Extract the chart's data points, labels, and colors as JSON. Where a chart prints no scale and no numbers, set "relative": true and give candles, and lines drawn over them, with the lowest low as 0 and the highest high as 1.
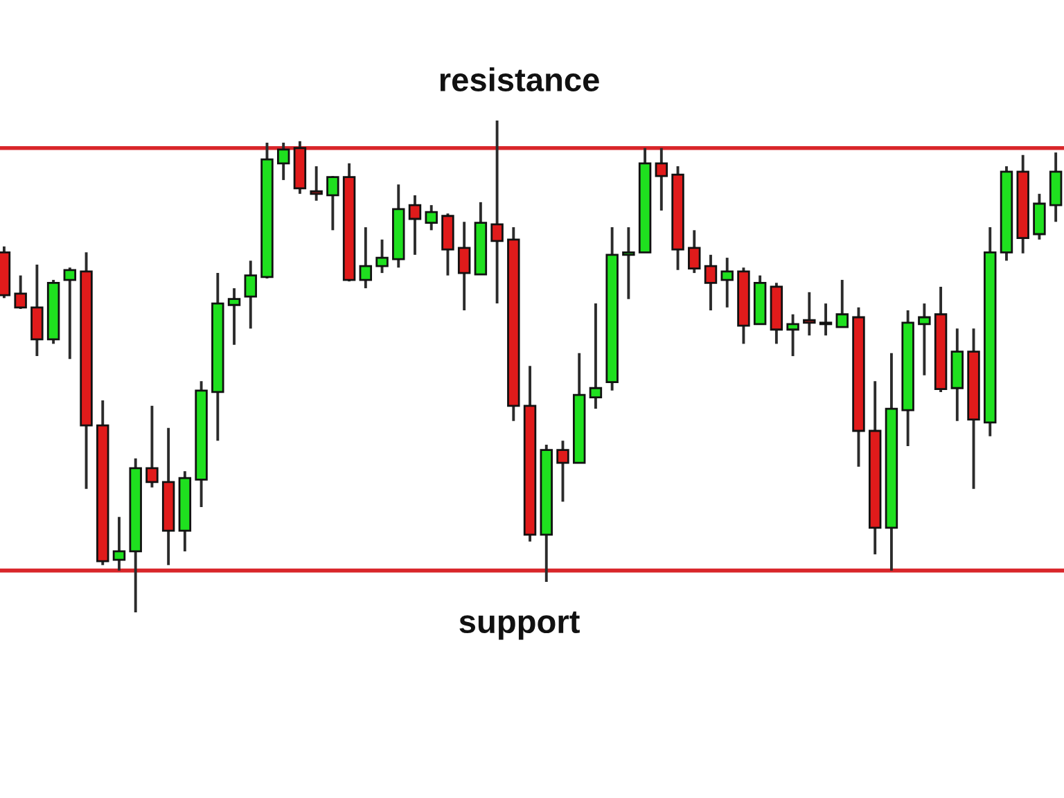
{
  "chart_data": {
    "type": "candlestick",
    "relative": true,
    "categories": [
      null,
      null,
      null,
      null,
      null,
      null,
      null,
      null,
      null,
      null,
      null,
      null,
      null,
      null,
      null,
      null,
      null,
      null,
      null,
      null,
      null,
      null,
      null,
      null,
      null,
      null,
      null,
      null,
      null,
      null,
      null,
      null,
      null,
      null,
      null,
      null,
      null,
      null,
      null,
      null,
      null,
      null,
      null,
      null,
      null,
      null,
      null,
      null,
      null,
      null,
      null,
      null,
      null,
      null,
      null,
      null,
      null,
      null,
      null,
      null,
      null,
      null,
      null,
      null,
      null
    ],
    "ohlc": [
      [
        0.732,
        0.744,
        0.639,
        0.645
      ],
      [
        0.648,
        0.685,
        0.617,
        0.62
      ],
      [
        0.62,
        0.707,
        0.521,
        0.555
      ],
      [
        0.555,
        0.676,
        0.546,
        0.67
      ],
      [
        0.676,
        0.701,
        0.515,
        0.696
      ],
      [
        0.693,
        0.732,
        0.251,
        0.38
      ],
      [
        0.38,
        0.431,
        0.096,
        0.104
      ],
      [
        0.107,
        0.194,
        0.085,
        0.124
      ],
      [
        0.124,
        0.313,
        0,
        0.293
      ],
      [
        0.293,
        0.42,
        0.254,
        0.265
      ],
      [
        0.265,
        0.375,
        0.096,
        0.166
      ],
      [
        0.166,
        0.287,
        0.124,
        0.273
      ],
      [
        0.27,
        0.47,
        0.214,
        0.451
      ],
      [
        0.448,
        0.69,
        0.349,
        0.628
      ],
      [
        0.625,
        0.659,
        0.544,
        0.637
      ],
      [
        0.642,
        0.715,
        0.577,
        0.685
      ],
      [
        0.682,
        0.955,
        0.679,
        0.921
      ],
      [
        0.913,
        0.955,
        0.879,
        0.941
      ],
      [
        0.944,
        0.958,
        0.851,
        0.862
      ],
      [
        0.856,
        0.907,
        0.837,
        0.851
      ],
      [
        0.848,
        0.887,
        0.777,
        0.885
      ],
      [
        0.885,
        0.913,
        0.673,
        0.676
      ],
      [
        0.676,
        0.783,
        0.659,
        0.704
      ],
      [
        0.704,
        0.758,
        0.69,
        0.721
      ],
      [
        0.718,
        0.87,
        0.701,
        0.82
      ],
      [
        0.828,
        0.848,
        0.727,
        0.8
      ],
      [
        0.792,
        0.828,
        0.777,
        0.814
      ],
      [
        0.806,
        0.811,
        0.685,
        0.738
      ],
      [
        0.741,
        0.794,
        0.614,
        0.69
      ],
      [
        0.687,
        0.834,
        0.687,
        0.792
      ],
      [
        0.789,
        1,
        0.628,
        0.755
      ],
      [
        0.758,
        0.783,
        0.389,
        0.42
      ],
      [
        0.42,
        0.501,
        0.144,
        0.158
      ],
      [
        0.158,
        0.341,
        0.062,
        0.33
      ],
      [
        0.33,
        0.349,
        0.225,
        0.304
      ],
      [
        0.304,
        0.527,
        0.304,
        0.442
      ],
      [
        0.437,
        0.628,
        0.414,
        0.456
      ],
      [
        0.468,
        0.783,
        0.451,
        0.727
      ],
      [
        0.727,
        0.783,
        0.637,
        0.732
      ],
      [
        0.732,
        0.944,
        0.732,
        0.913
      ],
      [
        0.913,
        0.944,
        0.817,
        0.887
      ],
      [
        0.89,
        0.907,
        0.696,
        0.738
      ],
      [
        0.741,
        0.777,
        0.69,
        0.699
      ],
      [
        0.704,
        0.727,
        0.614,
        0.67
      ],
      [
        0.676,
        0.721,
        0.62,
        0.693
      ],
      [
        0.693,
        0.701,
        0.546,
        0.583
      ],
      [
        0.586,
        0.685,
        0.586,
        0.67
      ],
      [
        0.662,
        0.67,
        0.546,
        0.575
      ],
      [
        0.575,
        0.606,
        0.521,
        0.586
      ],
      [
        0.594,
        0.651,
        0.563,
        0.589
      ],
      [
        0.589,
        0.628,
        0.563,
        0.586
      ],
      [
        0.58,
        0.676,
        0.58,
        0.606
      ],
      [
        0.6,
        0.62,
        0.296,
        0.369
      ],
      [
        0.369,
        0.47,
        0.118,
        0.172
      ],
      [
        0.172,
        0.527,
        0.085,
        0.414
      ],
      [
        0.411,
        0.614,
        0.338,
        0.589
      ],
      [
        0.586,
        0.628,
        0.482,
        0.6
      ],
      [
        0.606,
        0.662,
        0.448,
        0.454
      ],
      [
        0.456,
        0.577,
        0.389,
        0.53
      ],
      [
        0.53,
        0.577,
        0.251,
        0.392
      ],
      [
        0.386,
        0.783,
        0.358,
        0.732
      ],
      [
        0.732,
        0.907,
        0.715,
        0.896
      ],
      [
        0.896,
        0.93,
        0.73,
        0.761
      ],
      [
        0.769,
        0.851,
        0.758,
        0.831
      ],
      [
        0.828,
        0.935,
        0.794,
        0.896
      ]
    ],
    "colors": [
      "#e01b1b",
      "#e01b1b",
      "#e01b1b",
      "#1fe01f",
      "#1fe01f",
      "#e01b1b",
      "#e01b1b",
      "#1fe01f",
      "#1fe01f",
      "#e01b1b",
      "#e01b1b",
      "#1fe01f",
      "#1fe01f",
      "#1fe01f",
      "#1fe01f",
      "#1fe01f",
      "#1fe01f",
      "#1fe01f",
      "#e01b1b",
      "#e01b1b",
      "#1fe01f",
      "#e01b1b",
      "#1fe01f",
      "#1fe01f",
      "#1fe01f",
      "#e01b1b",
      "#1fe01f",
      "#e01b1b",
      "#e01b1b",
      "#1fe01f",
      "#e01b1b",
      "#e01b1b",
      "#e01b1b",
      "#1fe01f",
      "#e01b1b",
      "#1fe01f",
      "#1fe01f",
      "#1fe01f",
      "#1fe01f",
      "#1fe01f",
      "#e01b1b",
      "#e01b1b",
      "#e01b1b",
      "#e01b1b",
      "#1fe01f",
      "#e01b1b",
      "#1fe01f",
      "#e01b1b",
      "#1fe01f",
      "#e01b1b",
      "#e01b1b",
      "#1fe01f",
      "#e01b1b",
      "#e01b1b",
      "#1fe01f",
      "#1fe01f",
      "#1fe01f",
      "#e01b1b",
      "#1fe01f",
      "#e01b1b",
      "#1fe01f",
      "#1fe01f",
      "#e01b1b",
      "#1fe01f",
      "#1fe01f"
    ],
    "ref_lines": [
      {
        "axis": "y",
        "value": 0.944,
        "label": "resistance",
        "color": "#d9262a"
      },
      {
        "axis": "y",
        "value": 0.085,
        "label": "support",
        "color": "#d9262a"
      }
    ]
  }
}
